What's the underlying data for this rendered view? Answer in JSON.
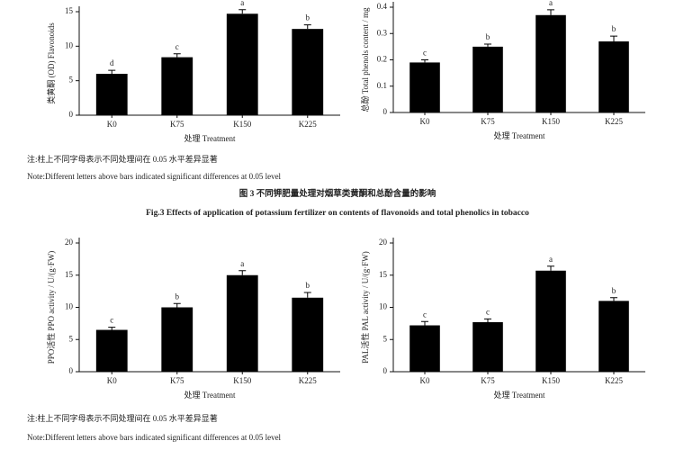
{
  "chart_data": [
    {
      "type": "bar",
      "categories": [
        "K0",
        "K75",
        "K150",
        "K225"
      ],
      "values": [
        6,
        8.4,
        14.7,
        12.5
      ],
      "errors": [
        0.5,
        0.5,
        0.6,
        0.6
      ],
      "letters": [
        "d",
        "c",
        "a",
        "b"
      ],
      "color": "#000000",
      "ylim": [
        0,
        15
      ],
      "yticks": [
        0,
        5,
        10,
        15
      ],
      "ylabel": "类黄酮 (OD) Flavonoids",
      "xlabel": "处理 Treatment"
    },
    {
      "type": "bar",
      "categories": [
        "K0",
        "K75",
        "K150",
        "K225"
      ],
      "values": [
        0.19,
        0.25,
        0.37,
        0.27
      ],
      "errors": [
        0.01,
        0.01,
        0.02,
        0.02
      ],
      "letters": [
        "c",
        "b",
        "a",
        "b"
      ],
      "color": "#000000",
      "ylim": [
        0,
        0.4
      ],
      "yticks": [
        0,
        0.1,
        0.2,
        0.3,
        0.4
      ],
      "ylabel": "总酚 Total phenols content / mg",
      "xlabel": "处理 Treatment"
    },
    {
      "type": "bar",
      "categories": [
        "K0",
        "K75",
        "K150",
        "K225"
      ],
      "values": [
        6.5,
        10,
        15,
        11.5
      ],
      "errors": [
        0.4,
        0.6,
        0.7,
        0.8
      ],
      "letters": [
        "c",
        "b",
        "a",
        "b"
      ],
      "color": "#000000",
      "ylim": [
        0,
        20
      ],
      "yticks": [
        0,
        5,
        10,
        15,
        20
      ],
      "ylabel": "PPO活性 PPO activity / U/(g·FW)",
      "xlabel": "处理 Treatment"
    },
    {
      "type": "bar",
      "categories": [
        "K0",
        "K75",
        "K150",
        "K225"
      ],
      "values": [
        7.2,
        7.7,
        15.7,
        11
      ],
      "errors": [
        0.6,
        0.5,
        0.7,
        0.5
      ],
      "letters": [
        "c",
        "c",
        "a",
        "b"
      ],
      "color": "#000000",
      "ylim": [
        0,
        20
      ],
      "yticks": [
        0,
        5,
        10,
        15,
        20
      ],
      "ylabel": "PAL活性 PAL activity / U/(g·FW)",
      "xlabel": "处理 Treatment"
    }
  ],
  "notes_top": [
    "注:柱上不同字母表示不同处理间在 0.05 水平差异显著",
    "Note:Different letters above bars indicated significant differences at 0.05 level"
  ],
  "caption": {
    "zh": "图 3  不同钾肥量处理对烟草类黄酮和总酚含量的影响",
    "en": "Fig.3  Effects of application of potassium fertilizer on contents of flavonoids and total phenolics in tobacco"
  },
  "notes_bottom": [
    "注:柱上不同字母表示不同处理间在 0.05 水平差异显著",
    "Note:Different letters above bars indicated significant differences at 0.05 level"
  ]
}
